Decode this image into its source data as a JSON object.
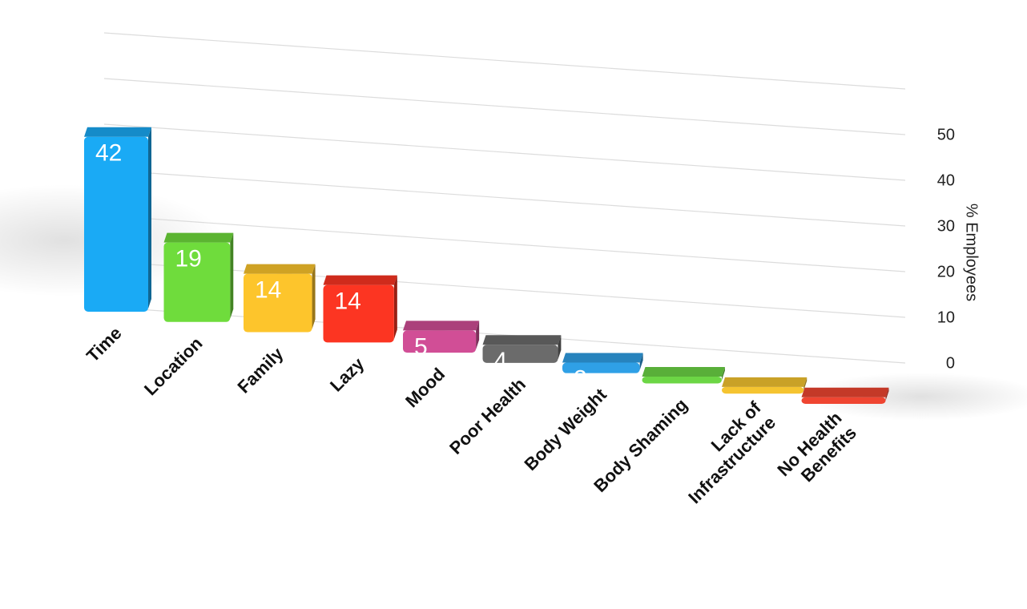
{
  "chart_data": {
    "type": "bar3d",
    "y_label": "% Employees",
    "categories": [
      "Time",
      "Location",
      "Family",
      "Lazy",
      "Mood",
      "Poor Health",
      "Body Weight",
      "Body Shaming",
      "Lack of Infrastructure",
      "No Health Benefits"
    ],
    "values": [
      42,
      19,
      14,
      14,
      5,
      4,
      2,
      1,
      1,
      1
    ],
    "colors": [
      "#1aaaf5",
      "#6fdc3c",
      "#fdc52c",
      "#fc3522",
      "#d14e96",
      "#6b6b6b",
      "#2fa0e6",
      "#6cd645",
      "#f5c430",
      "#ef4531"
    ],
    "ylim": [
      0,
      60
    ],
    "yticks": [
      0,
      10,
      20,
      30,
      40,
      50
    ],
    "grid": true
  }
}
